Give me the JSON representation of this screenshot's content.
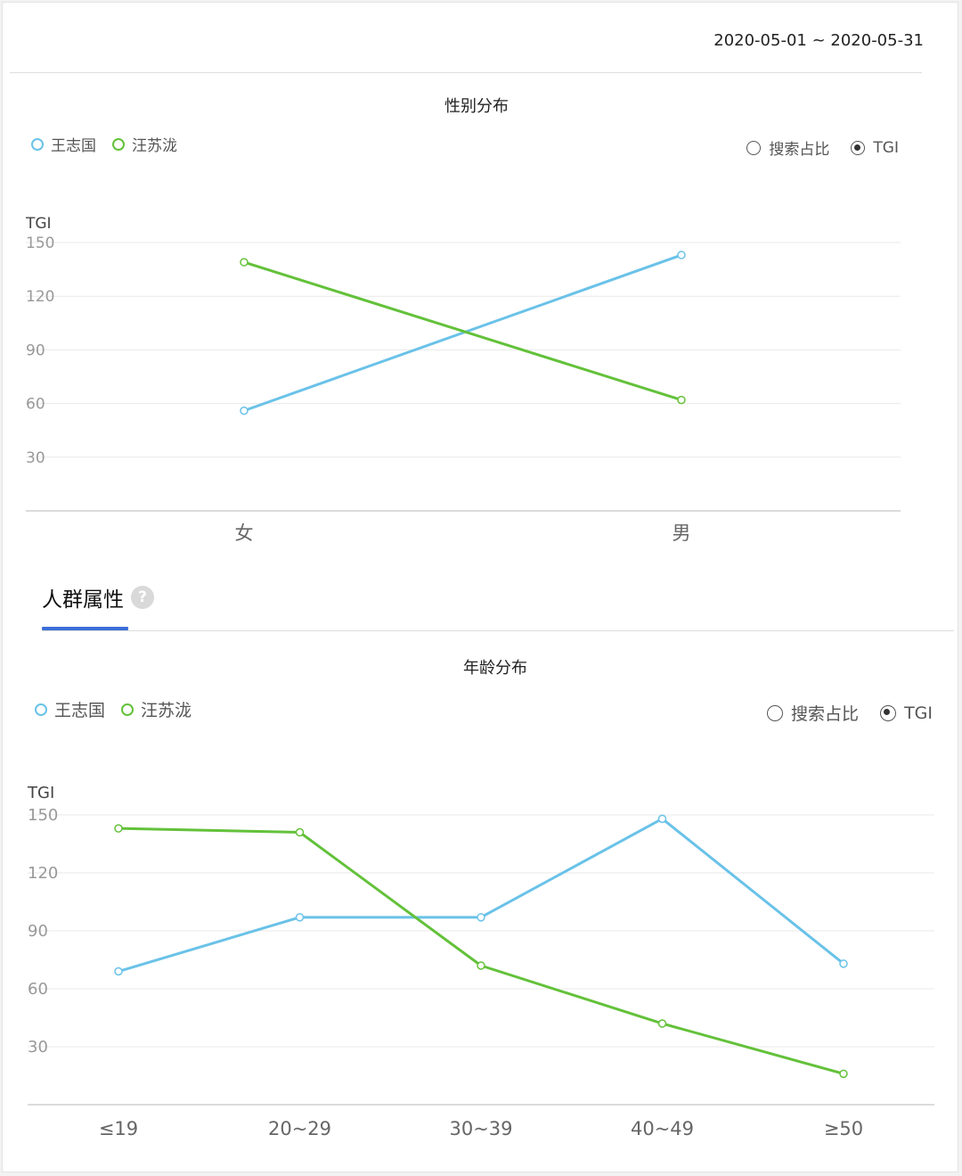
{
  "header": {
    "date_range": "2020-05-01 ~ 2020-05-31"
  },
  "section_tab": {
    "label": "人群属性",
    "help_icon": "question-mark-icon",
    "help_glyph": "?"
  },
  "colors": {
    "series_blue": "#6ac2e8",
    "series_green": "#63c13a",
    "tab_accent": "#3a6fd8",
    "grid": "#e9e9e9",
    "axis_text": "#999999"
  },
  "legend": {
    "items": [
      "王志国",
      "汪苏泷"
    ]
  },
  "radio": {
    "options": [
      "搜索占比",
      "TGI"
    ],
    "selected": "TGI"
  },
  "chart_data": [
    {
      "type": "line",
      "title": "性别分布",
      "ylabel": "TGI",
      "xlabel": "",
      "categories": [
        "女",
        "男"
      ],
      "yticks": [
        30,
        60,
        90,
        120,
        150
      ],
      "ylim": [
        0,
        150
      ],
      "grid": true,
      "legend_position": "top-left",
      "series": [
        {
          "name": "王志国",
          "color": "#6ac2e8",
          "values": [
            56,
            143
          ]
        },
        {
          "name": "汪苏泷",
          "color": "#63c13a",
          "values": [
            139,
            62
          ]
        }
      ]
    },
    {
      "type": "line",
      "title": "年龄分布",
      "ylabel": "TGI",
      "xlabel": "",
      "categories": [
        "≤19",
        "20~29",
        "30~39",
        "40~49",
        "≥50"
      ],
      "yticks": [
        30,
        60,
        90,
        120,
        150
      ],
      "ylim": [
        0,
        150
      ],
      "grid": true,
      "legend_position": "top-left",
      "series": [
        {
          "name": "王志国",
          "color": "#6ac2e8",
          "values": [
            69,
            97,
            97,
            148,
            73
          ]
        },
        {
          "name": "汪苏泷",
          "color": "#63c13a",
          "values": [
            143,
            141,
            72,
            42,
            16
          ]
        }
      ]
    }
  ]
}
